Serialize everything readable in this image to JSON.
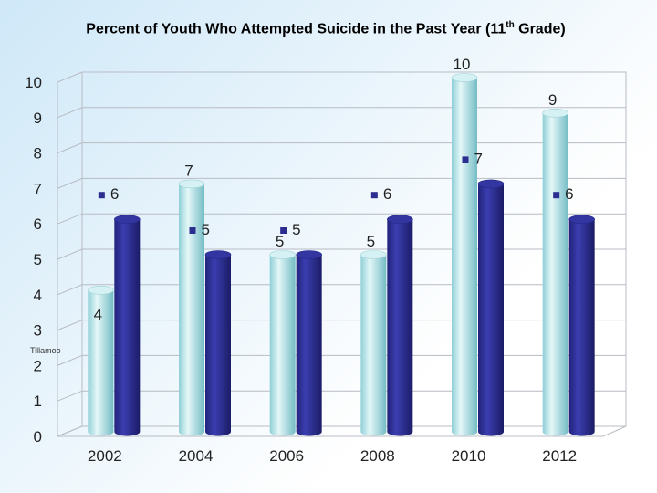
{
  "title": {
    "main": "Percent of Youth Who Attempted Suicide in the Past Year  (11",
    "sup": "th",
    "tail": " Grade)"
  },
  "chart_data": {
    "type": "bar",
    "categories": [
      "2002",
      "2004",
      "2006",
      "2008",
      "2010",
      "2012"
    ],
    "series": [
      {
        "name": "Tillamoo",
        "color": "#a9dfe3",
        "values": [
          4,
          7,
          5,
          5,
          10,
          9
        ]
      },
      {
        "name": "",
        "color": "#2b2d8f",
        "values": [
          6,
          5,
          5,
          6,
          7,
          6
        ]
      }
    ],
    "ylim": [
      0,
      10
    ],
    "yticks": [
      "0",
      "1",
      "2",
      "3",
      "4",
      "5",
      "6",
      "7",
      "8",
      "9",
      "10"
    ],
    "grid": true,
    "legend_marker": "square",
    "legend_text": "Tillamoo"
  }
}
